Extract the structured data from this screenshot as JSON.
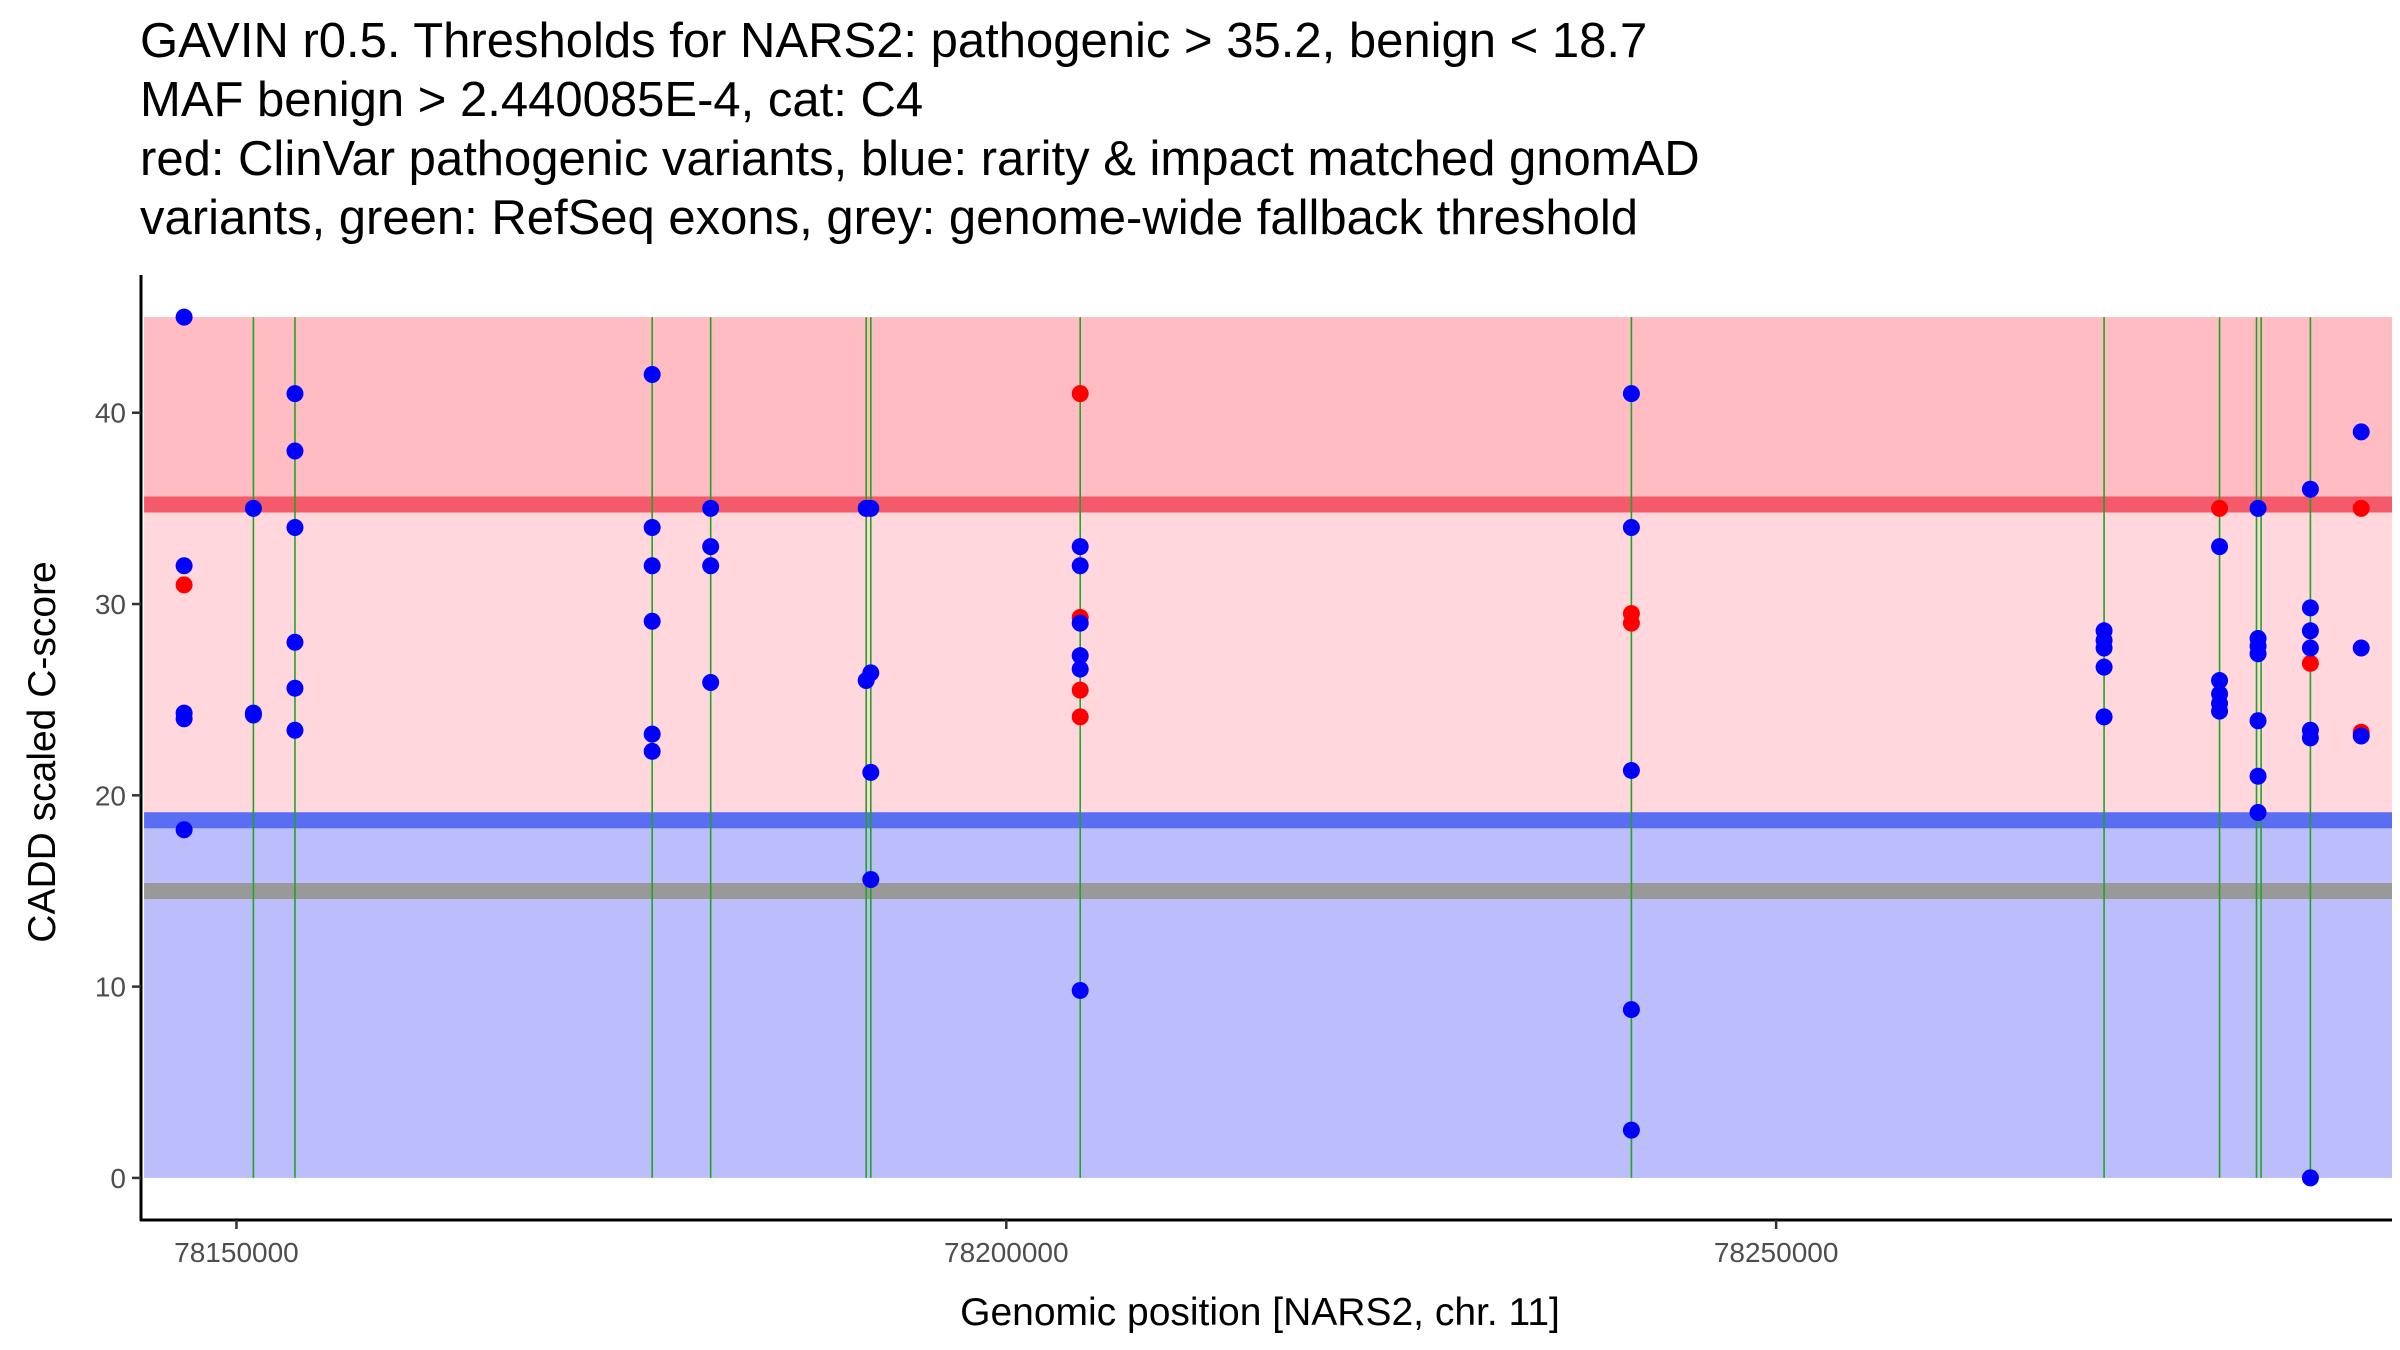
{
  "chart_data": {
    "type": "scatter",
    "title_lines": [
      "GAVIN r0.5. Thresholds for NARS2: pathogenic > 35.2, benign < 18.7",
      "MAF benign > 2.440085E-4, cat: C4",
      "red: ClinVar pathogenic variants, blue: rarity & impact matched gnomAD",
      "variants, green: RefSeq exons, grey: genome-wide fallback threshold"
    ],
    "xlabel": "Genomic position [NARS2, chr. 11]",
    "ylabel": "CADD scaled C-score",
    "xlim": [
      78143800,
      78290000
    ],
    "ylim": [
      -2.2,
      47.2
    ],
    "x_ticks": [
      78150000,
      78200000,
      78250000
    ],
    "x_tick_labels": [
      "78150000",
      "78200000",
      "78250000"
    ],
    "y_ticks": [
      0,
      10,
      20,
      30,
      40
    ],
    "y_tick_labels": [
      "0",
      "10",
      "20",
      "30",
      "40"
    ],
    "regions": [
      {
        "name": "pathogenic-region",
        "y0": 35.2,
        "y1": 45,
        "color": "#ffbcc2"
      },
      {
        "name": "uncertain-region",
        "y0": 18.7,
        "y1": 35.2,
        "color": "#ffd7dc"
      },
      {
        "name": "benign-region",
        "y0": 0,
        "y1": 18.7,
        "color": "#bbbefb"
      }
    ],
    "region_x_range": [
      78144000,
      78290000
    ],
    "thresholds": [
      {
        "name": "pathogenic-threshold-line",
        "y": 35.2,
        "color": "#f55a6a"
      },
      {
        "name": "benign-threshold-line",
        "y": 18.7,
        "color": "#5a6ef3"
      },
      {
        "name": "genome-wide-fallback-line",
        "y": 15,
        "color": "#999999"
      }
    ],
    "exon_lines": [
      78151100,
      78153800,
      78177000,
      78180800,
      78190900,
      78191200,
      78204800,
      78240600,
      78271300,
      78278800,
      78281200,
      78281500,
      78284700
    ],
    "exon_color": "#1fa61f",
    "series": [
      {
        "name": "ClinVar pathogenic variants",
        "color": "#ff0000",
        "points": [
          [
            78146600,
            31
          ],
          [
            78204800,
            41
          ],
          [
            78204800,
            29.3
          ],
          [
            78204800,
            25.5
          ],
          [
            78204800,
            24.1
          ],
          [
            78240600,
            29.5
          ],
          [
            78240600,
            29
          ],
          [
            78278800,
            35
          ],
          [
            78284700,
            26.9
          ],
          [
            78288000,
            35
          ],
          [
            78288000,
            23.3
          ]
        ]
      },
      {
        "name": "rarity & impact matched gnomAD variants",
        "color": "#0000ff",
        "points": [
          [
            78146600,
            45
          ],
          [
            78146600,
            32
          ],
          [
            78146600,
            24.3
          ],
          [
            78146600,
            24
          ],
          [
            78146600,
            18.2
          ],
          [
            78151100,
            35
          ],
          [
            78151100,
            24.3
          ],
          [
            78151100,
            24.2
          ],
          [
            78153800,
            41
          ],
          [
            78153800,
            38
          ],
          [
            78153800,
            34
          ],
          [
            78153800,
            28
          ],
          [
            78153800,
            25.6
          ],
          [
            78153800,
            23.4
          ],
          [
            78177000,
            42
          ],
          [
            78177000,
            34
          ],
          [
            78177000,
            32
          ],
          [
            78177000,
            29.1
          ],
          [
            78177000,
            23.2
          ],
          [
            78177000,
            22.3
          ],
          [
            78180800,
            35
          ],
          [
            78180800,
            33
          ],
          [
            78180800,
            32
          ],
          [
            78180800,
            25.9
          ],
          [
            78190900,
            35
          ],
          [
            78191200,
            35
          ],
          [
            78190900,
            26
          ],
          [
            78191200,
            26.4
          ],
          [
            78191200,
            21.2
          ],
          [
            78191200,
            15.6
          ],
          [
            78204800,
            33
          ],
          [
            78204800,
            32
          ],
          [
            78204800,
            29
          ],
          [
            78204800,
            27.3
          ],
          [
            78204800,
            26.6
          ],
          [
            78204800,
            9.8
          ],
          [
            78240600,
            41
          ],
          [
            78240600,
            34
          ],
          [
            78240600,
            21.3
          ],
          [
            78240600,
            8.8
          ],
          [
            78240600,
            2.5
          ],
          [
            78271300,
            28.6
          ],
          [
            78271300,
            28.1
          ],
          [
            78271300,
            27.7
          ],
          [
            78271300,
            26.7
          ],
          [
            78271300,
            24.1
          ],
          [
            78278800,
            33
          ],
          [
            78278800,
            26
          ],
          [
            78278800,
            25.3
          ],
          [
            78278800,
            24.8
          ],
          [
            78278800,
            24.4
          ],
          [
            78281300,
            35
          ],
          [
            78281300,
            28.2
          ],
          [
            78281300,
            27.8
          ],
          [
            78281300,
            27.4
          ],
          [
            78281300,
            23.9
          ],
          [
            78281300,
            21
          ],
          [
            78281300,
            19.1
          ],
          [
            78284700,
            36
          ],
          [
            78284700,
            29.8
          ],
          [
            78284700,
            28.6
          ],
          [
            78284700,
            27.7
          ],
          [
            78284700,
            23.4
          ],
          [
            78284700,
            23
          ],
          [
            78284700,
            0
          ],
          [
            78288000,
            39
          ],
          [
            78288000,
            27.7
          ],
          [
            78288000,
            23.1
          ]
        ]
      }
    ]
  }
}
